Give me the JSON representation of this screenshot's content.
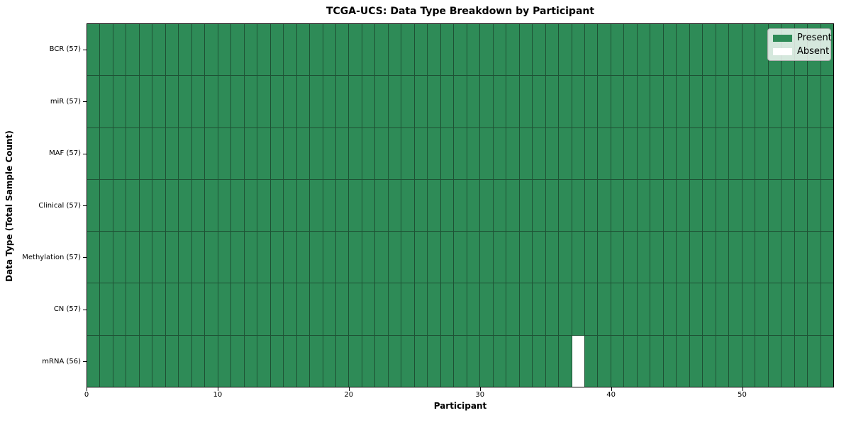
{
  "chart_data": {
    "type": "heatmap",
    "title": "TCGA-UCS: Data Type Breakdown by Participant",
    "xlabel": "Participant",
    "ylabel": "Data Type (Total Sample Count)",
    "n_participants": 57,
    "xlim": [
      0,
      57
    ],
    "x_ticks": [
      0,
      10,
      20,
      30,
      40,
      50
    ],
    "grid": true,
    "legend_position": "upper right",
    "rows": [
      {
        "label": "BCR (57)",
        "data_type": "BCR",
        "present_count": 57,
        "absent_participants": []
      },
      {
        "label": "miR (57)",
        "data_type": "miR",
        "present_count": 57,
        "absent_participants": []
      },
      {
        "label": "MAF (57)",
        "data_type": "MAF",
        "present_count": 57,
        "absent_participants": []
      },
      {
        "label": "Clinical (57)",
        "data_type": "Clinical",
        "present_count": 57,
        "absent_participants": []
      },
      {
        "label": "Methylation (57)",
        "data_type": "Methylation",
        "present_count": 57,
        "absent_participants": []
      },
      {
        "label": "CN (57)",
        "data_type": "CN",
        "present_count": 57,
        "absent_participants": []
      },
      {
        "label": "mRNA (56)",
        "data_type": "mRNA",
        "present_count": 56,
        "absent_participants": [
          37
        ]
      }
    ],
    "legend": [
      {
        "label": "Present",
        "color": "#2e8b57"
      },
      {
        "label": "Absent",
        "color": "#ffffff"
      }
    ],
    "colors": {
      "present": "#2e8b57",
      "absent": "#ffffff",
      "cell_border": "#1e5134",
      "axes_frame": "#000000"
    }
  }
}
